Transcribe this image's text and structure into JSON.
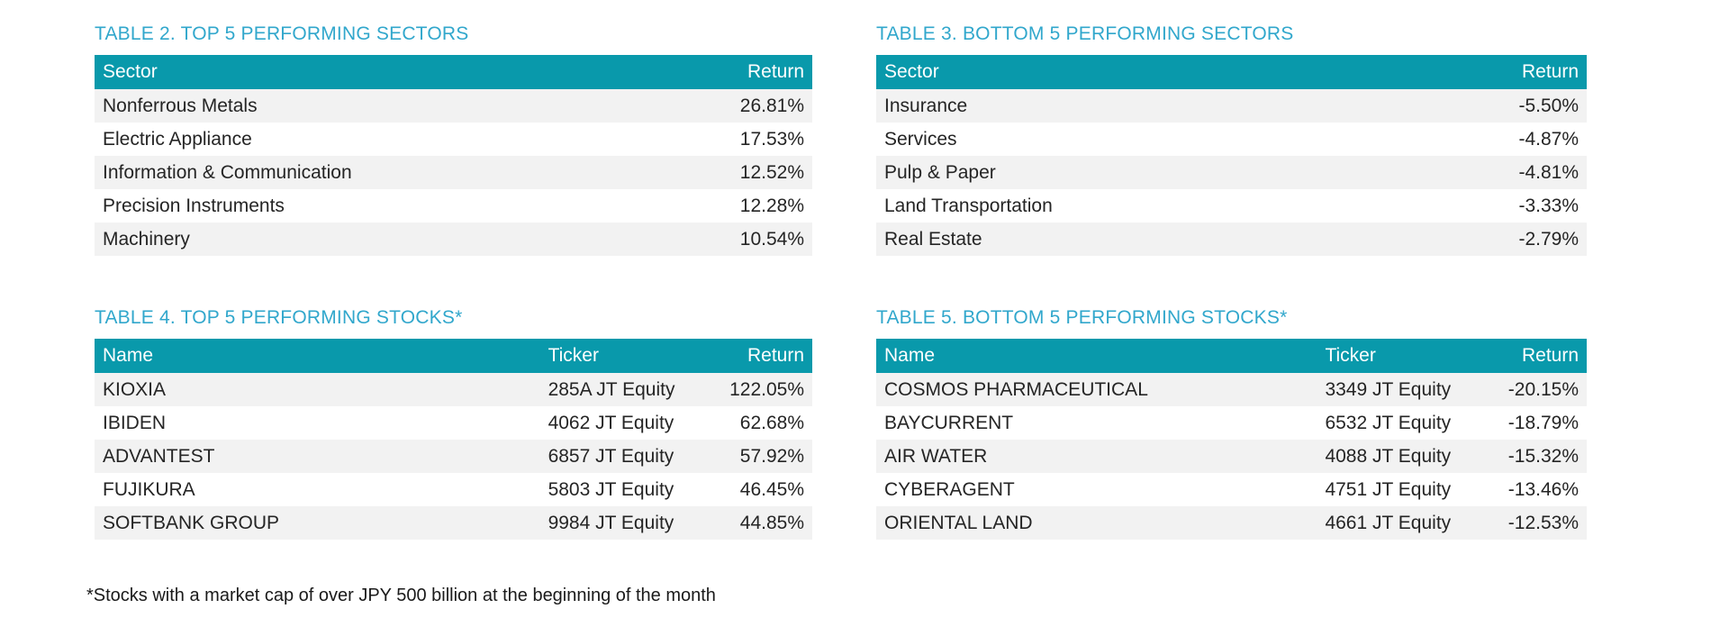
{
  "footnote": "*Stocks with a market cap of over JPY 500 billion at the beginning of the month",
  "colors": {
    "header_band_teal": "#0999ab",
    "title_cyan_blue": "#31a7cc",
    "row_alt_gray": "#f2f2f2",
    "body_text": "#252525",
    "header_text": "#ffffff"
  },
  "tables": [
    {
      "title": "TABLE 2. TOP 5 PERFORMING SECTORS",
      "headers": [
        "Sector",
        "Return"
      ],
      "rows": [
        {
          "sector": "Nonferrous Metals",
          "return": "26.81%"
        },
        {
          "sector": "Electric Appliance",
          "return": "17.53%"
        },
        {
          "sector": "Information & Communication",
          "return": "12.52%"
        },
        {
          "sector": "Precision Instruments",
          "return": "12.28%"
        },
        {
          "sector": "Machinery",
          "return": "10.54%"
        }
      ]
    },
    {
      "title": "TABLE 3. BOTTOM 5 PERFORMING SECTORS",
      "headers": [
        "Sector",
        "Return"
      ],
      "rows": [
        {
          "sector": "Insurance",
          "return": "-5.50%"
        },
        {
          "sector": "Services",
          "return": "-4.87%"
        },
        {
          "sector": "Pulp & Paper",
          "return": "-4.81%"
        },
        {
          "sector": "Land Transportation",
          "return": "-3.33%"
        },
        {
          "sector": "Real Estate",
          "return": "-2.79%"
        }
      ]
    },
    {
      "title": "TABLE 4. TOP 5 PERFORMING STOCKS*",
      "headers": [
        "Name",
        "Ticker",
        "Return"
      ],
      "rows": [
        {
          "name": "KIOXIA",
          "ticker": "285A JT Equity",
          "return": "122.05%"
        },
        {
          "name": "IBIDEN",
          "ticker": "4062 JT Equity",
          "return": "62.68%"
        },
        {
          "name": "ADVANTEST",
          "ticker": "6857 JT Equity",
          "return": "57.92%"
        },
        {
          "name": "FUJIKURA",
          "ticker": "5803 JT Equity",
          "return": "46.45%"
        },
        {
          "name": "SOFTBANK GROUP",
          "ticker": "9984 JT Equity",
          "return": "44.85%"
        }
      ]
    },
    {
      "title": "TABLE 5. BOTTOM 5 PERFORMING STOCKS*",
      "headers": [
        "Name",
        "Ticker",
        "Return"
      ],
      "rows": [
        {
          "name": "COSMOS PHARMACEUTICAL",
          "ticker": "3349 JT Equity",
          "return": "-20.15%"
        },
        {
          "name": "BAYCURRENT",
          "ticker": "6532 JT Equity",
          "return": "-18.79%"
        },
        {
          "name": "AIR WATER",
          "ticker": "4088 JT Equity",
          "return": "-15.32%"
        },
        {
          "name": "CYBERAGENT",
          "ticker": "4751 JT Equity",
          "return": "-13.46%"
        },
        {
          "name": "ORIENTAL LAND",
          "ticker": "4661 JT Equity",
          "return": "-12.53%"
        }
      ]
    }
  ]
}
